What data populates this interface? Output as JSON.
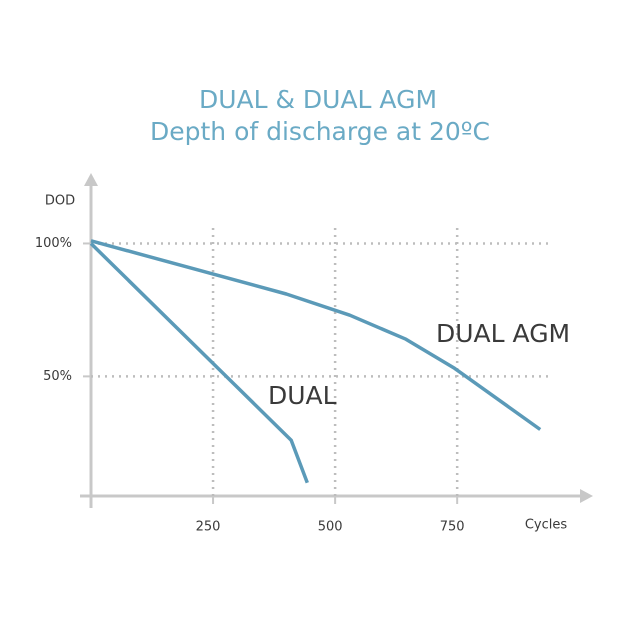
{
  "chart_data": {
    "type": "line",
    "title": "DUAL & DUAL AGM",
    "subtitle": "Depth of discharge at 20ºC",
    "x_label": "Cycles",
    "y_label": "DOD",
    "xlim": [
      0,
      1020
    ],
    "ylim": [
      5,
      125
    ],
    "xticks": [
      250,
      500,
      750
    ],
    "yticks": [
      {
        "value": 50,
        "label": "50%"
      },
      {
        "value": 100,
        "label": "100%"
      }
    ],
    "grid": true,
    "series": [
      {
        "name": "DUAL",
        "color": "#5b9ab8",
        "x": [
          0,
          410,
          443
        ],
        "values": [
          100,
          26,
          10
        ]
      },
      {
        "name": "DUAL AGM",
        "color": "#5b9ab8",
        "x": [
          0,
          400,
          530,
          645,
          745,
          920
        ],
        "values": [
          101,
          81,
          73,
          64,
          53,
          30
        ]
      }
    ]
  }
}
